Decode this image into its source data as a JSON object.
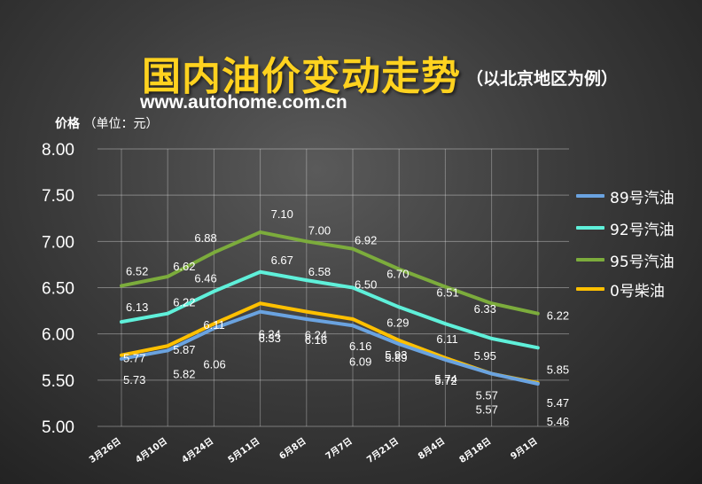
{
  "title": "国内油价变动走势",
  "subtitle": "（以北京地区为例）",
  "website": "www.autohome.com.cn",
  "y_axis_label": "价格",
  "y_axis_unit": "（单位：元）",
  "chart_data": {
    "type": "line",
    "title": "国内油价变动走势",
    "subtitle": "（以北京地区为例）",
    "ylabel": "价格（单位：元）",
    "xlabel": "",
    "ylim": [
      5.0,
      8.0
    ],
    "yticks": [
      "5.00",
      "5.50",
      "6.00",
      "6.50",
      "7.00",
      "7.50",
      "8.00"
    ],
    "grid": true,
    "legend_position": "right",
    "categories": [
      "3月26日",
      "4月10日",
      "4月24日",
      "5月11日",
      "6月8日",
      "7月7日",
      "7月21日",
      "8月4日",
      "8月18日",
      "9月1日"
    ],
    "series": [
      {
        "name": "89号汽油",
        "color": "#6aa3e0",
        "values": [
          5.73,
          5.82,
          6.06,
          6.24,
          6.16,
          6.09,
          5.89,
          5.72,
          5.57,
          5.46
        ],
        "labels": [
          "5.73",
          "5.82",
          "6.06",
          "6.24",
          "6.16",
          "6.09",
          "5.89",
          "5.72",
          "5.57",
          "5.46"
        ]
      },
      {
        "name": "92号汽油",
        "color": "#5ff0da",
        "values": [
          6.13,
          6.22,
          6.46,
          6.67,
          6.58,
          6.5,
          6.29,
          6.11,
          5.95,
          5.85
        ],
        "labels": [
          "6.13",
          "6.22",
          "6.46",
          "6.67",
          "6.58",
          "6.50",
          "6.29",
          "6.11",
          "5.95",
          "5.85"
        ]
      },
      {
        "name": "95号汽油",
        "color": "#7cac3c",
        "values": [
          6.52,
          6.62,
          6.88,
          7.1,
          7.0,
          6.92,
          6.7,
          6.51,
          6.33,
          6.22
        ],
        "labels": [
          "6.52",
          "6.62",
          "6.88",
          "7.10",
          "7.00",
          "6.92",
          "6.70",
          "6.51",
          "6.33",
          "6.22"
        ]
      },
      {
        "name": "0号柴油",
        "color": "#ffc000",
        "values": [
          5.77,
          5.87,
          6.11,
          6.33,
          6.24,
          6.16,
          5.93,
          5.74,
          5.57,
          5.47
        ],
        "labels": [
          "5.77",
          "5.87",
          "6.11",
          "6.33",
          "6.24",
          "6.16",
          "5.93",
          "5.74",
          "5.57",
          "5.47"
        ]
      }
    ]
  }
}
